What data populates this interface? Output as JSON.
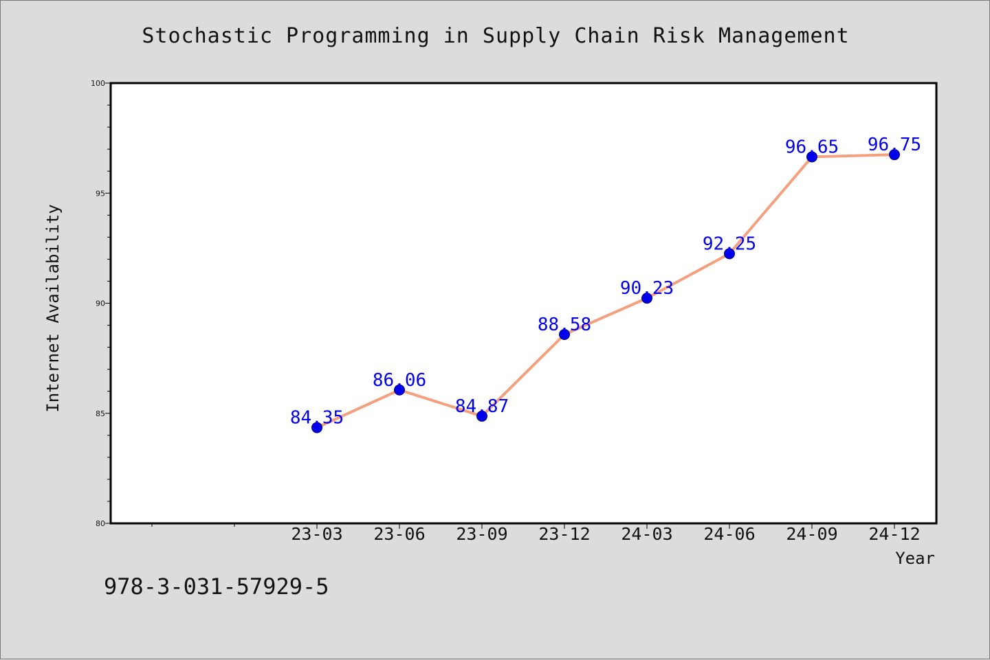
{
  "title": "Stochastic Programming in Supply Chain Risk Management",
  "isbn": "978-3-031-57929-5",
  "chart_data": {
    "type": "line",
    "title": "Stochastic Programming in Supply Chain Risk Management",
    "xlabel": "Year",
    "ylabel": "Internet Availability",
    "categories": [
      "23-03",
      "23-06",
      "23-09",
      "23-12",
      "24-03",
      "24-06",
      "24-09",
      "24-12"
    ],
    "values": [
      84.35,
      86.06,
      84.87,
      88.58,
      90.23,
      92.25,
      96.65,
      96.75
    ],
    "value_labels": [
      "84.35",
      "86.06",
      "84.87",
      "88.58",
      "90.23",
      "92.25",
      "96.65",
      "96.75"
    ],
    "ylim": [
      80,
      100
    ],
    "y_ticks": [
      "80",
      "85",
      "90",
      "95",
      "100"
    ],
    "grid": false,
    "legend": "none",
    "colors": {
      "line": "#f4a07f",
      "marker": "#0000ee",
      "label": "#0000ee",
      "background": "#dcdcdc",
      "plot_area": "#ffffff"
    }
  }
}
